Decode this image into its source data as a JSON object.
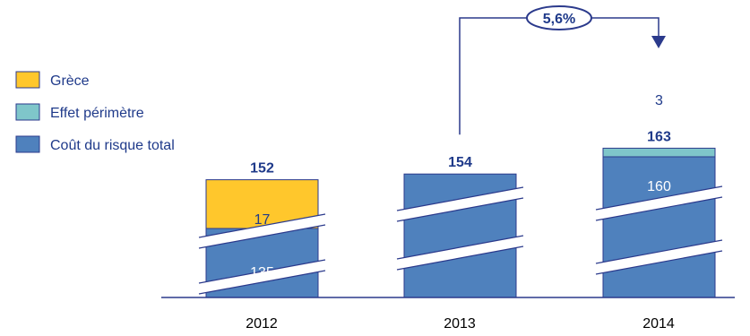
{
  "chart_data": {
    "type": "bar",
    "stacked": true,
    "axis_break": true,
    "categories": [
      "2012",
      "2013",
      "2014"
    ],
    "series": [
      {
        "name": "Coût du risque total",
        "color": "#4f81bd",
        "values": [
          135,
          154,
          160
        ]
      },
      {
        "name": "Grèce",
        "color": "#ffc72c",
        "values": [
          17,
          0,
          0
        ]
      },
      {
        "name": "Effet périmètre",
        "color": "#7fc6ca",
        "values": [
          0,
          0,
          3
        ]
      }
    ],
    "segment_labels": [
      {
        "category": "2012",
        "series": "Coût du risque total",
        "text": "135"
      },
      {
        "category": "2012",
        "series": "Grèce",
        "text": "17"
      },
      {
        "category": "2014",
        "series": "Coût du risque total",
        "text": "160"
      },
      {
        "category": "2014",
        "series": "Effet périmètre",
        "text": "3"
      }
    ],
    "totals": [
      "152",
      "154",
      "163"
    ],
    "annotation": {
      "from": "2013",
      "to": "2014",
      "text": "5,6%"
    },
    "legend_position": "left",
    "grid": false,
    "text_color": "#1f3a8a"
  }
}
